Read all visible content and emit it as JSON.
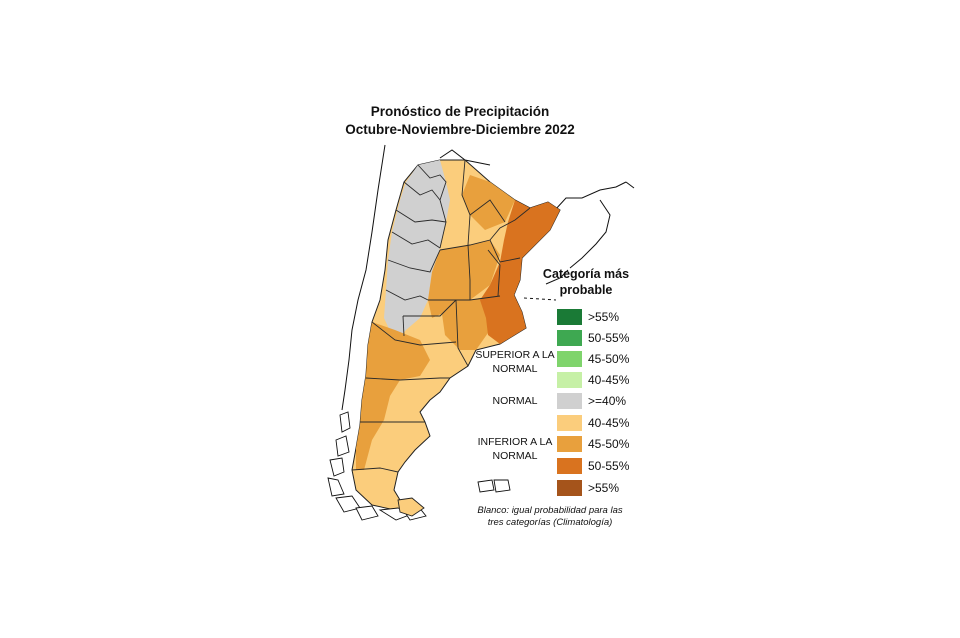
{
  "title": {
    "line1": "Pronóstico de Precipitación",
    "line2": "Octubre-Noviembre-Diciembre 2022"
  },
  "legend": {
    "heading": "Categoría más probable",
    "groups": {
      "superior": "SUPERIOR A LA NORMAL",
      "normal": "NORMAL",
      "inferior": "INFERIOR A LA NORMAL"
    },
    "items": [
      {
        "label": ">55%",
        "color": "#1a7a36"
      },
      {
        "label": "50-55%",
        "color": "#3ea851"
      },
      {
        "label": "45-50%",
        "color": "#7fd46c"
      },
      {
        "label": "40-45%",
        "color": "#c6f0a6"
      },
      {
        "label": ">=40%",
        "color": "#d0d0d0"
      },
      {
        "label": "40-45%",
        "color": "#fbcd7c"
      },
      {
        "label": "45-50%",
        "color": "#e8a03d"
      },
      {
        "label": "50-55%",
        "color": "#d9731f"
      },
      {
        "label": ">55%",
        "color": "#a5541b"
      }
    ],
    "note": "Blanco: igual probabilidad para las tres categorías (Climatología)"
  },
  "map": {
    "colors": {
      "normal": "#d0d0d0",
      "below_40_45": "#fbcd7c",
      "below_45_50": "#e8a03d",
      "below_50_55": "#d9731f"
    }
  }
}
